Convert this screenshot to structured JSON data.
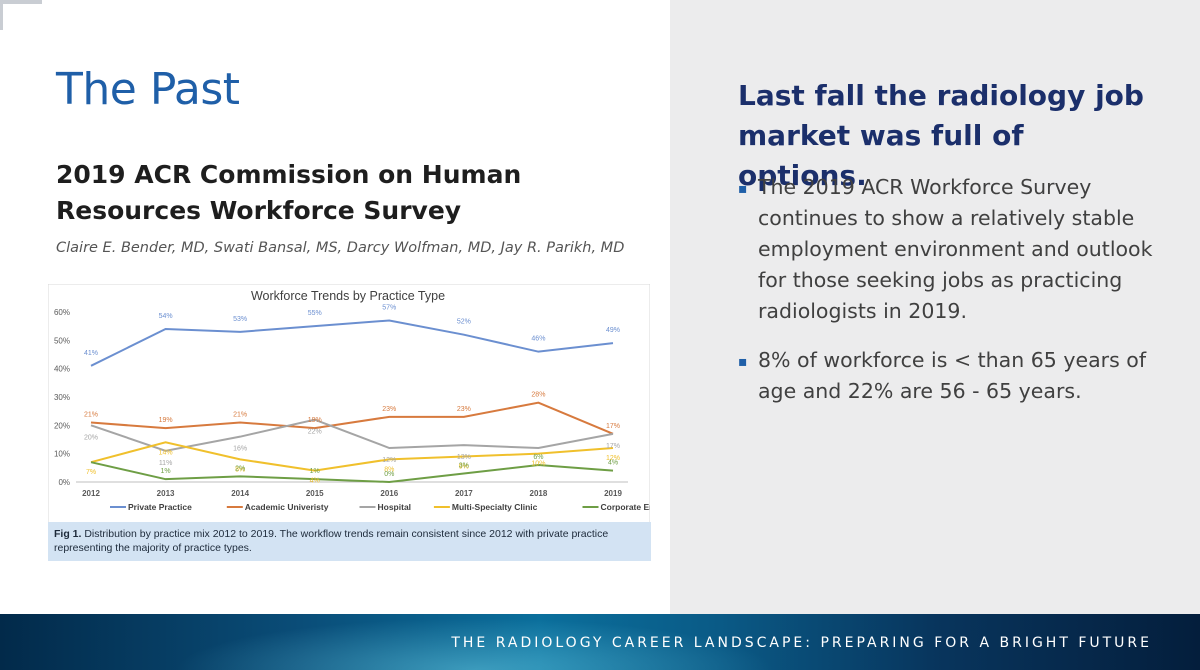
{
  "slide": {
    "title": "The Past",
    "subtitle": "2019 ACR Commission on Human Resources Workforce Survey",
    "authors": "Claire E. Bender, MD, Swati Bansal, MS, Darcy Wolfman, MD, Jay R. Parikh, MD",
    "caption_label": "Fig 1.",
    "caption_text": " Distribution by practice mix 2012 to 2019. The workflow trends remain consistent since 2012 with private practice representing the majority of practice types.",
    "right_heading": "Last fall the radiology job market was full of options.",
    "bullets": [
      "The 2019 ACR Workforce Survey continues to show a relatively stable employment environment and outlook for those seeking jobs as practicing radiologists in 2019.",
      "8% of workforce is < than 65 years of age and 22% are 56  - 65 years."
    ],
    "bullet_marker": "▪",
    "footer": "THE RADIOLOGY CAREER LANDSCAPE: PREPARING FOR A BRIGHT FUTURE"
  },
  "colors": {
    "title": "#1f5fa8",
    "heading": "#1b2f6b",
    "private": "#6b8fd0",
    "academic": "#d77a3e",
    "hospital": "#a5a5a5",
    "multi": "#f0c02c",
    "corporate": "#6e9e45"
  },
  "chart_data": {
    "type": "line",
    "title": "Workforce Trends by Practice Type",
    "x": [
      "2012",
      "2013",
      "2014",
      "2015",
      "2016",
      "2017",
      "2018",
      "2019"
    ],
    "ylim": [
      0,
      60
    ],
    "yticks": [
      "0%",
      "10%",
      "20%",
      "30%",
      "40%",
      "50%",
      "60%"
    ],
    "grid": false,
    "legend_position": "bottom",
    "series": [
      {
        "name": "Private Practice",
        "color": "#6b8fd0",
        "values": [
          41,
          54,
          53,
          55,
          57,
          52,
          46,
          49
        ],
        "labels": [
          "41%",
          "54%",
          "53%",
          "55%",
          "57%",
          "52%",
          "46%",
          "49%"
        ]
      },
      {
        "name": "Academic Univeristy",
        "color": "#d77a3e",
        "values": [
          21,
          19,
          21,
          19,
          23,
          23,
          28,
          17
        ],
        "labels": [
          "21%",
          "19%",
          "21%",
          "19%",
          "23%",
          "23%",
          "28%",
          "17%"
        ]
      },
      {
        "name": "Hospital",
        "color": "#a5a5a5",
        "values": [
          20,
          11,
          16,
          22,
          12,
          13,
          12,
          17
        ],
        "labels": [
          "20%",
          "11%",
          "16%",
          "22%",
          "12%",
          "13%",
          "",
          "17%"
        ]
      },
      {
        "name": "Multi-Specialty Clinic",
        "color": "#f0c02c",
        "values": [
          7,
          14,
          8,
          4,
          8,
          9,
          10,
          12
        ],
        "labels": [
          "7%",
          "14%",
          "8%",
          "4%",
          "8%",
          "9%",
          "10%",
          "12%"
        ]
      },
      {
        "name": "Corporate Employee",
        "color": "#6e9e45",
        "values": [
          7,
          1,
          2,
          1,
          0,
          3,
          6,
          4
        ],
        "labels": [
          "",
          "1%",
          "2%",
          "1%",
          "0%",
          "3%",
          "6%",
          "4%"
        ]
      }
    ]
  }
}
